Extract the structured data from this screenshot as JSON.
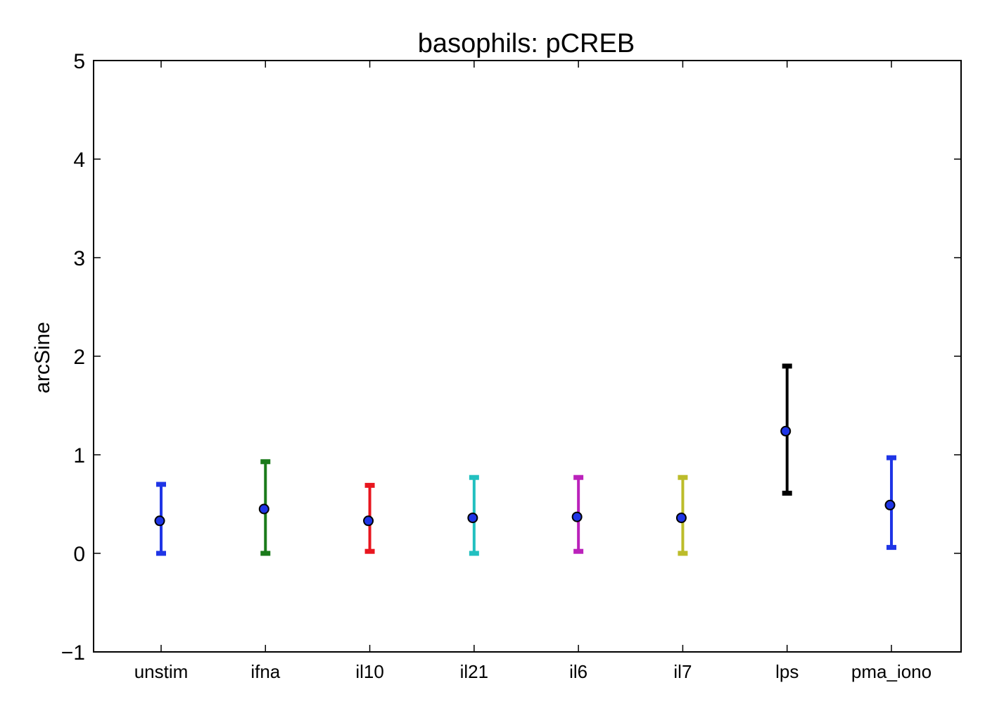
{
  "chart_data": {
    "type": "errorbar",
    "title": "basophils: pCREB",
    "xlabel": "",
    "ylabel": "arcSine",
    "ylim": [
      -1,
      5
    ],
    "yticks": [
      -1,
      0,
      1,
      2,
      3,
      4,
      5
    ],
    "ytick_labels": [
      "−1",
      "0",
      "1",
      "2",
      "3",
      "4",
      "5"
    ],
    "grid": false,
    "categories": [
      "unstim",
      "ifna",
      "il10",
      "il21",
      "il6",
      "il7",
      "lps",
      "pma_iono"
    ],
    "values": [
      0.33,
      0.45,
      0.33,
      0.36,
      0.37,
      0.36,
      1.24,
      0.49
    ],
    "lower": [
      0.0,
      0.0,
      0.02,
      0.0,
      0.02,
      0.0,
      0.61,
      0.06
    ],
    "upper": [
      0.7,
      0.93,
      0.69,
      0.77,
      0.77,
      0.77,
      1.9,
      0.97
    ],
    "colors": [
      "#1f35e6",
      "#1a7a1a",
      "#e8161f",
      "#22c0c0",
      "#bb22bb",
      "#bcbc2a",
      "#000000",
      "#1f35e6"
    ],
    "marker_color": "#1f35e6"
  }
}
